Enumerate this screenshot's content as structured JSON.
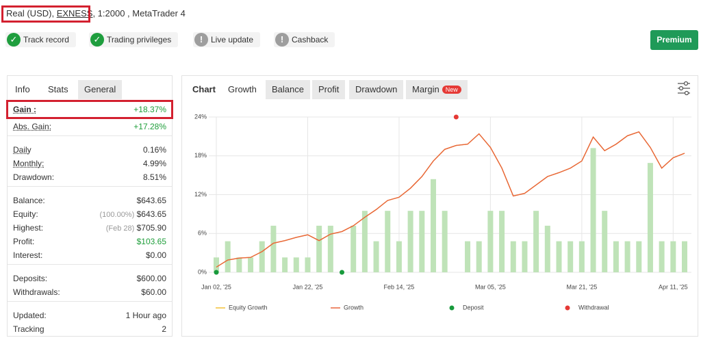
{
  "header": {
    "account_type": "Real (USD), ",
    "broker": "EXNESS",
    "details": ", 1:2000 , MetaTrader 4"
  },
  "badges": [
    {
      "label": "Track record",
      "verified": true
    },
    {
      "label": "Trading privileges",
      "verified": true
    },
    {
      "label": "Live update",
      "verified": false
    },
    {
      "label": "Cashback",
      "verified": false
    }
  ],
  "premium_button": "Premium",
  "info_tabs": [
    "Info",
    "Stats",
    "General"
  ],
  "info_groups": [
    [
      {
        "label": "Gain :",
        "value": "+18.37%",
        "highlight": true,
        "underlined": true
      },
      {
        "label": "Abs. Gain:",
        "value": "+17.28%",
        "highlight": true,
        "underlined": true
      }
    ],
    [
      {
        "label": "Daily",
        "value": "0.16%",
        "underlined": true
      },
      {
        "label": "Monthly:",
        "value": "4.99%",
        "underlined": true
      },
      {
        "label": "Drawdown:",
        "value": "8.51%"
      }
    ],
    [
      {
        "label": "Balance:",
        "value": "$643.65"
      },
      {
        "label": "Equity:",
        "note": "(100.00%)",
        "value": "$643.65"
      },
      {
        "label": "Highest:",
        "note": "(Feb 28)",
        "value": "$705.90"
      },
      {
        "label": "Profit:",
        "value": "$103.65",
        "highlight": true
      },
      {
        "label": "Interest:",
        "value": "$0.00"
      }
    ],
    [
      {
        "label": "Deposits:",
        "value": "$600.00"
      },
      {
        "label": "Withdrawals:",
        "value": "$60.00"
      }
    ],
    [
      {
        "label": "Updated:",
        "value": "1 Hour ago"
      },
      {
        "label": "Tracking",
        "value": "2"
      }
    ]
  ],
  "chart_tabs": [
    "Chart",
    "Growth",
    "Balance",
    "Profit",
    "Drawdown",
    "Margin"
  ],
  "new_badge": "New",
  "chart_data": {
    "type": "bar-line",
    "categories": [
      "Jan 02, '25",
      null,
      null,
      null,
      null,
      null,
      null,
      null,
      "Jan 22, '25",
      null,
      null,
      null,
      null,
      null,
      null,
      null,
      "Feb 14, '25",
      null,
      null,
      null,
      null,
      null,
      null,
      null,
      "Mar 05, '25",
      null,
      null,
      null,
      null,
      null,
      null,
      null,
      "Mar 21, '25",
      null,
      null,
      null,
      null,
      null,
      null,
      null,
      "Apr 11, '25",
      null
    ],
    "ylim": [
      0,
      24
    ],
    "yticks": [
      {
        "value": 0,
        "label": "0%"
      },
      {
        "value": 6,
        "label": "6%"
      },
      {
        "value": 12,
        "label": "12%"
      },
      {
        "value": 18,
        "label": "18%"
      },
      {
        "value": 24,
        "label": "24%"
      }
    ],
    "grid": true,
    "bars": {
      "color": "#bfe3b8",
      "values": [
        2.3,
        4.8,
        2.3,
        2.3,
        4.8,
        7.2,
        2.3,
        2.3,
        2.3,
        7.2,
        7.2,
        null,
        7.2,
        9.5,
        4.8,
        9.5,
        4.8,
        9.5,
        9.5,
        14.4,
        9.5,
        null,
        4.8,
        4.8,
        9.5,
        9.5,
        4.8,
        4.8,
        9.5,
        7.2,
        4.8,
        4.8,
        4.8,
        19.2,
        9.5,
        4.8,
        4.8,
        4.8,
        16.9,
        4.8,
        4.8,
        4.8
      ]
    },
    "series": [
      {
        "name": "Equity Growth",
        "kind": "line",
        "color": "#f2c037",
        "values": [
          0.8,
          1.9,
          2.2,
          2.3,
          3.2,
          4.5,
          4.9,
          5.4,
          5.8,
          4.9,
          5.9,
          6.3,
          7.2,
          8.5,
          9.7,
          11.1,
          11.6,
          13.0,
          14.8,
          17.2,
          19.0,
          19.6,
          19.8,
          21.4,
          19.3,
          16.1,
          11.8,
          12.2,
          13.5,
          14.8,
          15.4,
          16.1,
          17.2,
          20.9,
          18.8,
          19.8,
          21.1,
          21.7,
          19.3,
          16.1,
          17.7,
          18.4
        ]
      },
      {
        "name": "Growth",
        "kind": "line",
        "color": "#e8643c",
        "values": [
          0.8,
          1.9,
          2.2,
          2.3,
          3.2,
          4.5,
          4.9,
          5.4,
          5.8,
          4.9,
          5.9,
          6.3,
          7.2,
          8.5,
          9.7,
          11.1,
          11.6,
          13.0,
          14.8,
          17.2,
          19.0,
          19.6,
          19.8,
          21.4,
          19.3,
          16.1,
          11.8,
          12.2,
          13.5,
          14.8,
          15.4,
          16.1,
          17.2,
          20.9,
          18.8,
          19.8,
          21.1,
          21.7,
          19.3,
          16.1,
          17.7,
          18.4
        ]
      },
      {
        "name": "Deposit",
        "kind": "point",
        "color": "#189a3c",
        "values": [
          0,
          null,
          null,
          null,
          null,
          null,
          null,
          null,
          null,
          null,
          null,
          0,
          null,
          null,
          null,
          null,
          null,
          null,
          null,
          null,
          null,
          null,
          null,
          null,
          null,
          null,
          null,
          null,
          null,
          null,
          null,
          null,
          null,
          null,
          null,
          null,
          null,
          null,
          null,
          null,
          null,
          null
        ]
      },
      {
        "name": "Withdrawal",
        "kind": "point",
        "color": "#e53935",
        "values": [
          null,
          null,
          null,
          null,
          null,
          null,
          null,
          null,
          null,
          null,
          null,
          null,
          null,
          null,
          null,
          null,
          null,
          null,
          null,
          null,
          null,
          24,
          null,
          null,
          null,
          null,
          null,
          null,
          null,
          null,
          null,
          null,
          null,
          null,
          null,
          null,
          null,
          null,
          null,
          null,
          null,
          null
        ]
      }
    ]
  }
}
